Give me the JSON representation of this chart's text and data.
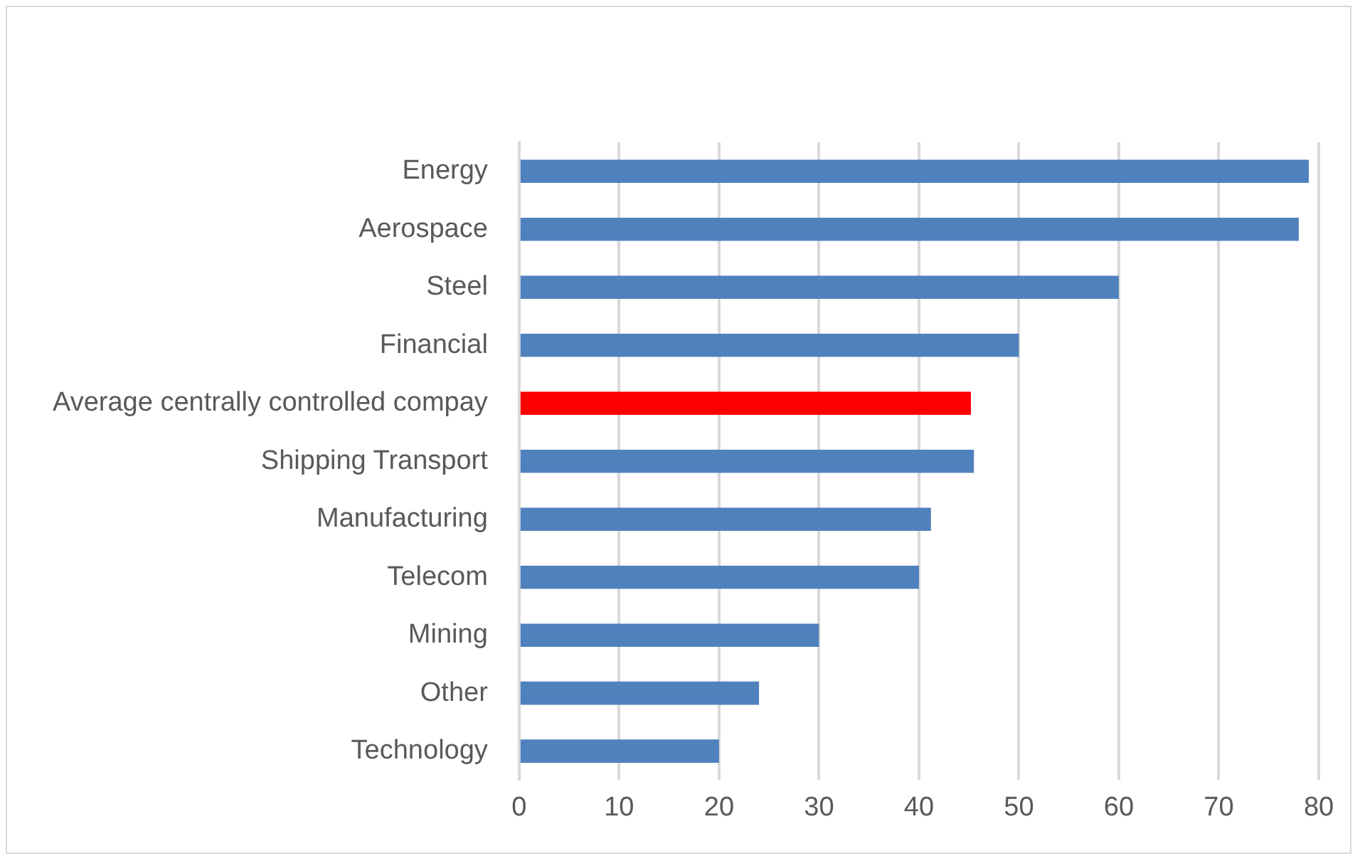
{
  "chart_data": {
    "type": "bar",
    "orientation": "horizontal",
    "categories": [
      "Energy",
      "Aerospace",
      "Steel",
      "Financial",
      "Average centrally controlled compay",
      "Shipping Transport",
      "Manufacturing",
      "Telecom",
      "Mining",
      "Other",
      "Technology"
    ],
    "values": [
      79,
      78,
      60,
      50,
      45.2,
      45.5,
      41.2,
      40,
      30,
      24,
      20
    ],
    "colors": [
      "#4f81bd",
      "#4f81bd",
      "#4f81bd",
      "#4f81bd",
      "#ff0000",
      "#4f81bd",
      "#4f81bd",
      "#4f81bd",
      "#4f81bd",
      "#4f81bd",
      "#4f81bd"
    ],
    "xlim": [
      0,
      80
    ],
    "xticks": [
      0,
      10,
      20,
      30,
      40,
      50,
      60,
      70,
      80
    ],
    "grid": "x",
    "legend": false
  }
}
